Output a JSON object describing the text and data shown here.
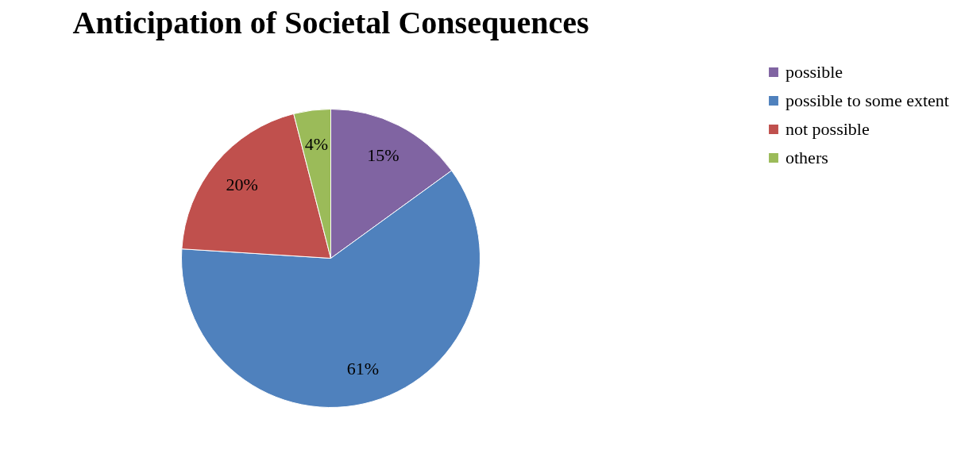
{
  "chart_data": {
    "type": "pie",
    "title": "Anticipation of Societal Consequences",
    "categories": [
      "possible",
      "possible to some extent",
      "not possible",
      "others"
    ],
    "values": [
      15,
      61,
      20,
      4
    ],
    "value_labels": [
      "15%",
      "61%",
      "20%",
      "4%"
    ],
    "colors": [
      "#8064a2",
      "#4f81bd",
      "#c0504d",
      "#9bbb59"
    ],
    "legend": "right"
  }
}
